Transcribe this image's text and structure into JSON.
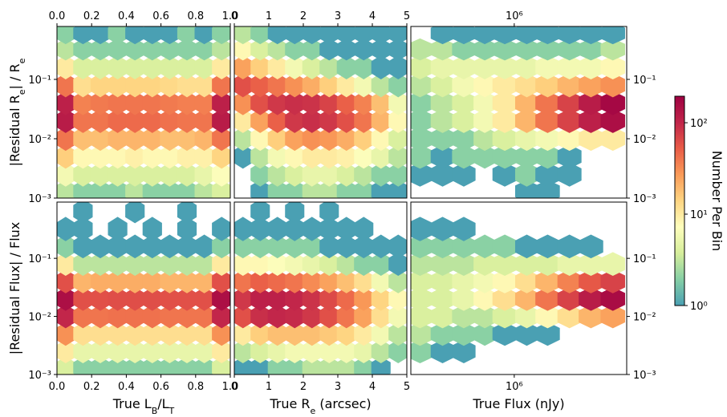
{
  "chart_data": [
    {
      "type": "hexbin",
      "xlim": [
        0,
        1
      ],
      "ylim": [
        0.001,
        0.78
      ],
      "ylog": true,
      "xtick_side": "top",
      "ytick_side": "left",
      "xticks": [
        {
          "value": 0,
          "label": "0.0"
        },
        0.2,
        0.4,
        0.6,
        0.8,
        {
          "value": 1,
          "label": "1.0"
        }
      ],
      "yticks": [
        {
          "value": 0.001,
          "label": "10⁻³"
        },
        {
          "value": 0.01,
          "label": "10⁻²"
        },
        {
          "value": 0.1,
          "label": "10⁻¹"
        }
      ],
      "ylabel": [
        {
          "text": "|Residual R"
        },
        {
          "text": "e",
          "sub": true
        },
        {
          "text": "| / R"
        },
        {
          "text": "e",
          "sub": true
        }
      ],
      "x": [
        0.05,
        0.15,
        0.25,
        0.35,
        0.45,
        0.55,
        0.65,
        0.75,
        0.85,
        0.95
      ],
      "y": [
        0.0013,
        0.0025,
        0.005,
        0.01,
        0.02,
        0.04,
        0.08,
        0.16,
        0.32,
        0.6
      ],
      "counts": [
        [
          3,
          2,
          2,
          2,
          3,
          2,
          2,
          2,
          3,
          4
        ],
        [
          6,
          4,
          4,
          4,
          4,
          4,
          4,
          4,
          5,
          7
        ],
        [
          15,
          8,
          8,
          8,
          9,
          8,
          8,
          9,
          9,
          14
        ],
        [
          40,
          18,
          18,
          20,
          20,
          20,
          18,
          18,
          20,
          40
        ],
        [
          120,
          40,
          40,
          45,
          45,
          45,
          42,
          40,
          40,
          120
        ],
        [
          110,
          35,
          38,
          40,
          40,
          40,
          38,
          36,
          36,
          110
        ],
        [
          40,
          12,
          14,
          14,
          14,
          14,
          13,
          12,
          12,
          40
        ],
        [
          10,
          4,
          4,
          4,
          4,
          4,
          4,
          4,
          4,
          10
        ],
        [
          3,
          2,
          2,
          2,
          2,
          2,
          2,
          2,
          2,
          3
        ],
        [
          2,
          1,
          1,
          2,
          1,
          1,
          1,
          2,
          1,
          2
        ]
      ]
    },
    {
      "type": "hexbin",
      "xlim": [
        0,
        5
      ],
      "ylim": [
        0.001,
        0.78
      ],
      "ylog": true,
      "xtick_side": "top",
      "ytick_side": "none",
      "xticks": [
        0,
        1,
        2,
        3,
        4,
        5
      ],
      "yticks": [
        {
          "value": 0.001,
          "label": "10⁻³"
        },
        {
          "value": 0.01,
          "label": "10⁻²"
        },
        {
          "value": 0.1,
          "label": "10⁻¹"
        }
      ],
      "x": [
        0.25,
        0.75,
        1.25,
        1.75,
        2.25,
        2.75,
        3.25,
        3.75,
        4.25,
        4.75
      ],
      "y": [
        0.0013,
        0.0025,
        0.005,
        0.01,
        0.02,
        0.04,
        0.08,
        0.16,
        0.32,
        0.6
      ],
      "counts": [
        [
          null,
          1,
          2,
          2,
          3,
          3,
          2,
          2,
          1,
          1
        ],
        [
          null,
          2,
          3,
          4,
          5,
          5,
          4,
          3,
          2,
          2
        ],
        [
          1,
          3,
          6,
          8,
          10,
          10,
          9,
          7,
          5,
          3
        ],
        [
          3,
          8,
          15,
          25,
          30,
          28,
          22,
          15,
          8,
          4
        ],
        [
          10,
          25,
          50,
          80,
          90,
          80,
          60,
          40,
          20,
          8
        ],
        [
          30,
          60,
          80,
          90,
          85,
          70,
          50,
          35,
          18,
          6
        ],
        [
          60,
          50,
          40,
          30,
          22,
          15,
          10,
          6,
          3,
          2
        ],
        [
          25,
          15,
          10,
          6,
          4,
          3,
          2,
          2,
          1,
          1
        ],
        [
          8,
          4,
          3,
          2,
          2,
          1,
          1,
          1,
          1,
          1
        ],
        [
          3,
          2,
          1,
          1,
          1,
          1,
          1,
          1,
          1,
          1
        ]
      ]
    },
    {
      "type": "hexbin",
      "xlim": [
        316000,
        3500000
      ],
      "xlog": true,
      "ylim": [
        0.001,
        0.78
      ],
      "ylog": true,
      "xtick_side": "top",
      "ytick_side": "right",
      "xticks": [
        {
          "value": 1000000,
          "label": "10⁶"
        }
      ],
      "yticks": [
        {
          "value": 0.001,
          "label": "10⁻³"
        },
        {
          "value": 0.01,
          "label": "10⁻²"
        },
        {
          "value": 0.1,
          "label": "10⁻¹"
        }
      ],
      "x": [
        350000,
        450000,
        570000,
        720000,
        900000,
        1150000,
        1450000,
        1850000,
        2350000,
        3000000
      ],
      "y": [
        0.0013,
        0.0025,
        0.005,
        0.01,
        0.02,
        0.04,
        0.08,
        0.16,
        0.32,
        0.6
      ],
      "counts": [
        [
          null,
          null,
          null,
          null,
          null,
          1,
          1,
          null,
          null,
          null
        ],
        [
          1,
          1,
          1,
          null,
          1,
          2,
          1,
          1,
          null,
          null
        ],
        [
          2,
          1,
          2,
          2,
          2,
          2,
          2,
          1,
          null,
          null
        ],
        [
          2,
          2,
          2,
          3,
          4,
          5,
          6,
          8,
          10,
          10
        ],
        [
          2,
          3,
          4,
          6,
          10,
          20,
          40,
          70,
          110,
          150
        ],
        [
          2,
          3,
          4,
          6,
          10,
          20,
          40,
          70,
          120,
          170
        ],
        [
          3,
          4,
          6,
          8,
          10,
          12,
          15,
          20,
          25,
          30
        ],
        [
          4,
          5,
          5,
          5,
          5,
          5,
          6,
          6,
          6,
          8
        ],
        [
          3,
          3,
          2,
          2,
          2,
          2,
          2,
          2,
          2,
          3
        ],
        [
          null,
          1,
          1,
          1,
          1,
          1,
          1,
          1,
          1,
          1
        ]
      ]
    },
    {
      "type": "hexbin",
      "xlim": [
        0,
        1
      ],
      "ylim": [
        0.001,
        0.93
      ],
      "ylog": true,
      "xtick_side": "bottom",
      "ytick_side": "left",
      "xticks": [
        {
          "value": 0,
          "label": "0.0"
        },
        0.2,
        0.4,
        0.6,
        0.8,
        {
          "value": 1,
          "label": "1.0"
        }
      ],
      "yticks": [
        {
          "value": 0.001,
          "label": "10⁻³"
        },
        {
          "value": 0.01,
          "label": "10⁻²"
        },
        {
          "value": 0.1,
          "label": "10⁻¹"
        }
      ],
      "xlabel": [
        {
          "text": "True L"
        },
        {
          "text": "B",
          "sub": true
        },
        {
          "text": "/L"
        },
        {
          "text": "T",
          "sub": true
        }
      ],
      "ylabel": [
        {
          "text": "|Residual Flux| / Flux"
        }
      ],
      "x": [
        0.05,
        0.15,
        0.25,
        0.35,
        0.45,
        0.55,
        0.65,
        0.75,
        0.85,
        0.95
      ],
      "y": [
        0.0013,
        0.0025,
        0.005,
        0.01,
        0.02,
        0.04,
        0.08,
        0.16,
        0.32,
        0.65
      ],
      "counts": [
        [
          4,
          2,
          2,
          2,
          2,
          2,
          2,
          2,
          2,
          4
        ],
        [
          10,
          5,
          5,
          5,
          5,
          5,
          5,
          5,
          5,
          10
        ],
        [
          30,
          12,
          12,
          12,
          12,
          12,
          12,
          12,
          12,
          30
        ],
        [
          100,
          40,
          40,
          42,
          42,
          42,
          40,
          40,
          40,
          100
        ],
        [
          150,
          60,
          60,
          62,
          62,
          62,
          60,
          60,
          60,
          150
        ],
        [
          60,
          20,
          22,
          22,
          22,
          22,
          20,
          20,
          20,
          60
        ],
        [
          10,
          3,
          3,
          3,
          3,
          3,
          3,
          3,
          3,
          10
        ],
        [
          2,
          1,
          1,
          1,
          1,
          1,
          1,
          1,
          1,
          2
        ],
        [
          1,
          1,
          null,
          1,
          null,
          1,
          null,
          1,
          null,
          1
        ],
        [
          null,
          1,
          null,
          null,
          1,
          null,
          null,
          1,
          null,
          null
        ]
      ]
    },
    {
      "type": "hexbin",
      "xlim": [
        0,
        5
      ],
      "ylim": [
        0.001,
        0.93
      ],
      "ylog": true,
      "xtick_side": "bottom",
      "ytick_side": "none",
      "xticks": [
        0,
        1,
        2,
        3,
        4,
        5
      ],
      "yticks": [
        {
          "value": 0.001,
          "label": "10⁻³"
        },
        {
          "value": 0.01,
          "label": "10⁻²"
        },
        {
          "value": 0.1,
          "label": "10⁻¹"
        }
      ],
      "xlabel": [
        {
          "text": "True R"
        },
        {
          "text": "e",
          "sub": true
        },
        {
          "text": " (arcsec)"
        }
      ],
      "x": [
        0.25,
        0.75,
        1.25,
        1.75,
        2.25,
        2.75,
        3.25,
        3.75,
        4.25,
        4.75
      ],
      "y": [
        0.0013,
        0.0025,
        0.005,
        0.01,
        0.02,
        0.04,
        0.08,
        0.16,
        0.32,
        0.65
      ],
      "counts": [
        [
          1,
          1,
          2,
          2,
          3,
          3,
          3,
          2,
          1,
          null
        ],
        [
          3,
          4,
          5,
          6,
          6,
          6,
          6,
          5,
          3,
          2
        ],
        [
          10,
          15,
          18,
          18,
          18,
          16,
          14,
          10,
          6,
          3
        ],
        [
          60,
          90,
          100,
          95,
          80,
          60,
          40,
          25,
          12,
          6
        ],
        [
          80,
          110,
          110,
          100,
          85,
          65,
          45,
          28,
          14,
          8
        ],
        [
          40,
          50,
          45,
          40,
          32,
          25,
          18,
          12,
          6,
          3
        ],
        [
          8,
          8,
          7,
          6,
          5,
          4,
          3,
          2,
          2,
          1
        ],
        [
          2,
          2,
          2,
          2,
          2,
          1,
          1,
          1,
          1,
          1
        ],
        [
          1,
          1,
          1,
          1,
          1,
          1,
          1,
          1,
          null,
          null
        ],
        [
          null,
          1,
          null,
          1,
          null,
          1,
          null,
          null,
          null,
          null
        ]
      ]
    },
    {
      "type": "hexbin",
      "xlim": [
        316000,
        3500000
      ],
      "xlog": true,
      "ylim": [
        0.001,
        0.93
      ],
      "ylog": true,
      "xtick_side": "bottom",
      "ytick_side": "right",
      "xticks": [
        {
          "value": 1000000,
          "label": "10⁶"
        }
      ],
      "yticks": [
        {
          "value": 0.001,
          "label": "10⁻³"
        },
        {
          "value": 0.01,
          "label": "10⁻²"
        },
        {
          "value": 0.1,
          "label": "10⁻¹"
        }
      ],
      "xlabel": [
        {
          "text": "True Flux (nJy)"
        }
      ],
      "x": [
        350000,
        450000,
        570000,
        720000,
        900000,
        1150000,
        1450000,
        1850000,
        2350000,
        3000000
      ],
      "y": [
        0.0013,
        0.0025,
        0.005,
        0.01,
        0.02,
        0.04,
        0.08,
        0.16,
        0.32,
        0.65
      ],
      "counts": [
        [
          null,
          null,
          null,
          null,
          null,
          null,
          null,
          null,
          null,
          null
        ],
        [
          2,
          1,
          1,
          null,
          null,
          null,
          null,
          null,
          null,
          null
        ],
        [
          3,
          2,
          2,
          2,
          1,
          1,
          1,
          null,
          null,
          null
        ],
        [
          4,
          4,
          3,
          3,
          4,
          5,
          8,
          12,
          20,
          25
        ],
        [
          4,
          4,
          5,
          8,
          12,
          20,
          40,
          70,
          120,
          160
        ],
        [
          4,
          4,
          5,
          6,
          8,
          12,
          20,
          35,
          55,
          70
        ],
        [
          3,
          3,
          3,
          4,
          4,
          4,
          4,
          5,
          5,
          5
        ],
        [
          2,
          2,
          2,
          2,
          2,
          1,
          1,
          1,
          1,
          null
        ],
        [
          1,
          1,
          1,
          null,
          null,
          null,
          null,
          null,
          null,
          null
        ],
        [
          null,
          null,
          null,
          null,
          null,
          null,
          null,
          null,
          null,
          null
        ]
      ]
    },
    {
      "type": "colorbar",
      "label": "Number Per Bin",
      "clim": [
        1,
        195
      ],
      "log": true,
      "ticks": [
        {
          "value": 1,
          "label": "10⁰"
        },
        {
          "value": 10,
          "label": "10¹"
        },
        {
          "value": 100,
          "label": "10²"
        }
      ],
      "colormap": [
        "#4aa0b3",
        "#86cfa5",
        "#d6ee9b",
        "#fefebd",
        "#fed582",
        "#fa9b58",
        "#e95c47",
        "#c1254a",
        "#9e0142"
      ]
    }
  ]
}
